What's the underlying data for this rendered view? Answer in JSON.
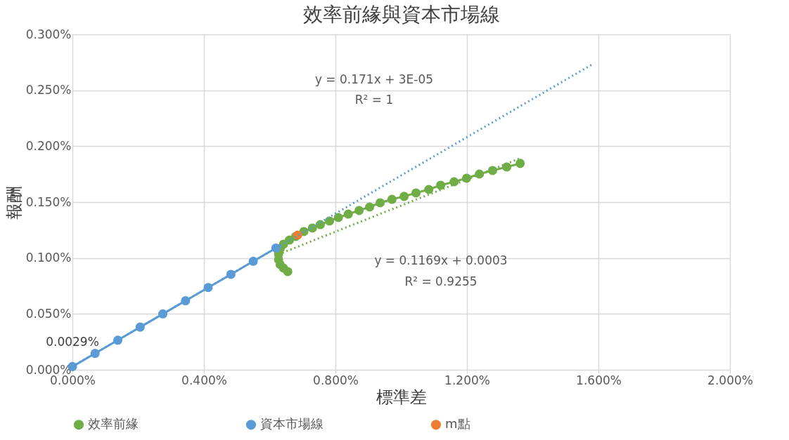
{
  "chart_data": {
    "type": "line",
    "title": "效率前緣與資本市場線",
    "xlabel": "標準差",
    "ylabel": "報酬",
    "xlim": [
      0,
      2.0
    ],
    "ylim": [
      0,
      0.3
    ],
    "xticks": [
      {
        "value": 0,
        "label": "0.000%"
      },
      {
        "value": 0.4,
        "label": "0.400%"
      },
      {
        "value": 0.8,
        "label": "0.800%"
      },
      {
        "value": 1.2,
        "label": "1.200%"
      },
      {
        "value": 1.6,
        "label": "1.600%"
      },
      {
        "value": 2.0,
        "label": "2.000%"
      }
    ],
    "yticks": [
      {
        "value": 0,
        "label": "0.000%"
      },
      {
        "value": 0.05,
        "label": "0.050%"
      },
      {
        "value": 0.1,
        "label": "0.100%"
      },
      {
        "value": 0.15,
        "label": "0.150%"
      },
      {
        "value": 0.2,
        "label": "0.200%"
      },
      {
        "value": 0.25,
        "label": "0.250%"
      },
      {
        "value": 0.3,
        "label": "0.300%"
      }
    ],
    "grid": true,
    "legend": "bottom",
    "series": [
      {
        "name": "效率前緣",
        "color": "#70ad47",
        "marker": "circle",
        "line_style": "solid",
        "x": [
          0.655,
          0.642,
          0.632,
          0.627,
          0.627,
          0.632,
          0.642,
          0.66,
          0.679,
          0.704,
          0.73,
          0.754,
          0.782,
          0.809,
          0.839,
          0.872,
          0.904,
          0.936,
          0.972,
          1.009,
          1.045,
          1.084,
          1.12,
          1.161,
          1.199,
          1.238,
          1.278,
          1.321,
          1.362
        ],
        "values": [
          0.0879,
          0.091,
          0.0942,
          0.0986,
          0.1036,
          0.1086,
          0.1124,
          0.1161,
          0.1193,
          0.1237,
          0.1268,
          0.1299,
          0.1331,
          0.1362,
          0.1393,
          0.1425,
          0.1456,
          0.1494,
          0.1525,
          0.1551,
          0.1582,
          0.1613,
          0.1651,
          0.1682,
          0.1714,
          0.1751,
          0.1783,
          0.1814,
          0.1846
        ]
      },
      {
        "name": "資本市場線",
        "color": "#5b9bd5",
        "marker": "circle",
        "line_style": "solid",
        "x": [
          0,
          0.069,
          0.138,
          0.206,
          0.275,
          0.344,
          0.413,
          0.482,
          0.55,
          0.619
        ],
        "values": [
          0.0029,
          0.0147,
          0.0265,
          0.0382,
          0.05,
          0.0618,
          0.0736,
          0.0854,
          0.0971,
          0.1089
        ],
        "value_labels": [
          "0.0029%",
          null,
          null,
          null,
          null,
          null,
          null,
          null,
          null,
          null
        ]
      },
      {
        "type": "scatter",
        "name": "m點",
        "color": "#ed7d31",
        "marker": "circle",
        "x": [
          0.685
        ],
        "values": [
          0.1205
        ]
      },
      {
        "color": "#5b9bd5",
        "line_style": "dotted",
        "x": [
          0,
          1.58
        ],
        "values": [
          0.003,
          0.273
        ]
      },
      {
        "color": "#70ad47",
        "line_style": "dotted",
        "x": [
          0.627,
          1.36
        ],
        "values": [
          0.1033,
          0.189
        ]
      }
    ],
    "annotations": [
      "y = 0.171x + 3E-05",
      "R² = 1",
      "y = 0.1169x + 0.0003",
      "R² = 0.9255"
    ]
  }
}
